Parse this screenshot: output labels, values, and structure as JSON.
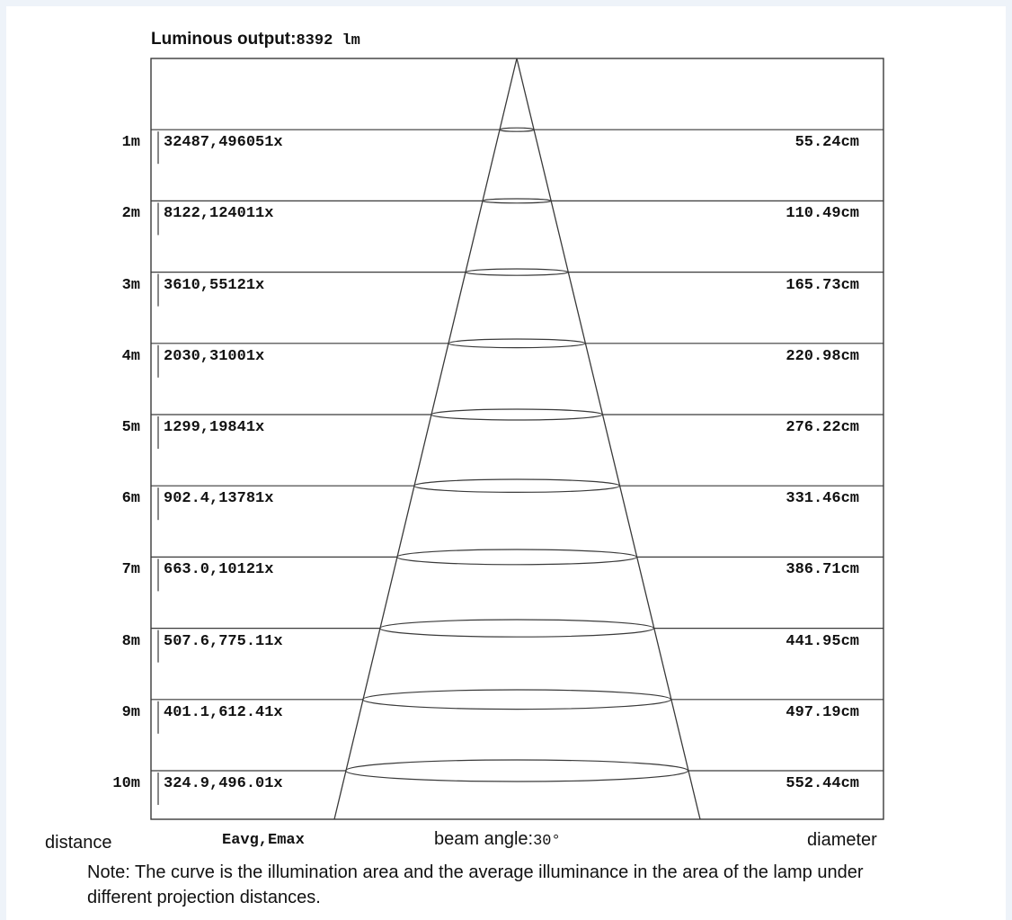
{
  "title": {
    "label": "Luminous output:",
    "value": "8392 lm"
  },
  "rows": [
    {
      "distance": "1m",
      "illuminance": "32487,496051x",
      "diameter": "55.24cm"
    },
    {
      "distance": "2m",
      "illuminance": "8122,124011x",
      "diameter": "110.49cm"
    },
    {
      "distance": "3m",
      "illuminance": "3610,55121x",
      "diameter": "165.73cm"
    },
    {
      "distance": "4m",
      "illuminance": "2030,31001x",
      "diameter": "220.98cm"
    },
    {
      "distance": "5m",
      "illuminance": "1299,19841x",
      "diameter": "276.22cm"
    },
    {
      "distance": "6m",
      "illuminance": "902.4,13781x",
      "diameter": "331.46cm"
    },
    {
      "distance": "7m",
      "illuminance": "663.0,10121x",
      "diameter": "386.71cm"
    },
    {
      "distance": "8m",
      "illuminance": "507.6,775.11x",
      "diameter": "441.95cm"
    },
    {
      "distance": "9m",
      "illuminance": "401.1,612.41x",
      "diameter": "497.19cm"
    },
    {
      "distance": "10m",
      "illuminance": "324.9,496.01x",
      "diameter": "552.44cm"
    }
  ],
  "footer": {
    "distance_label": "distance",
    "illuminance_label": "Eavg,Emax",
    "beam_label": "beam angle:",
    "beam_value": "30°",
    "diameter_label": "diameter"
  },
  "note": "Note: The curve is the illumination area and the average illuminance in the area of the lamp under different projection distances.",
  "colors": {
    "line": "#3a3a3a",
    "text": "#111111",
    "background": "#eef3f9"
  }
}
